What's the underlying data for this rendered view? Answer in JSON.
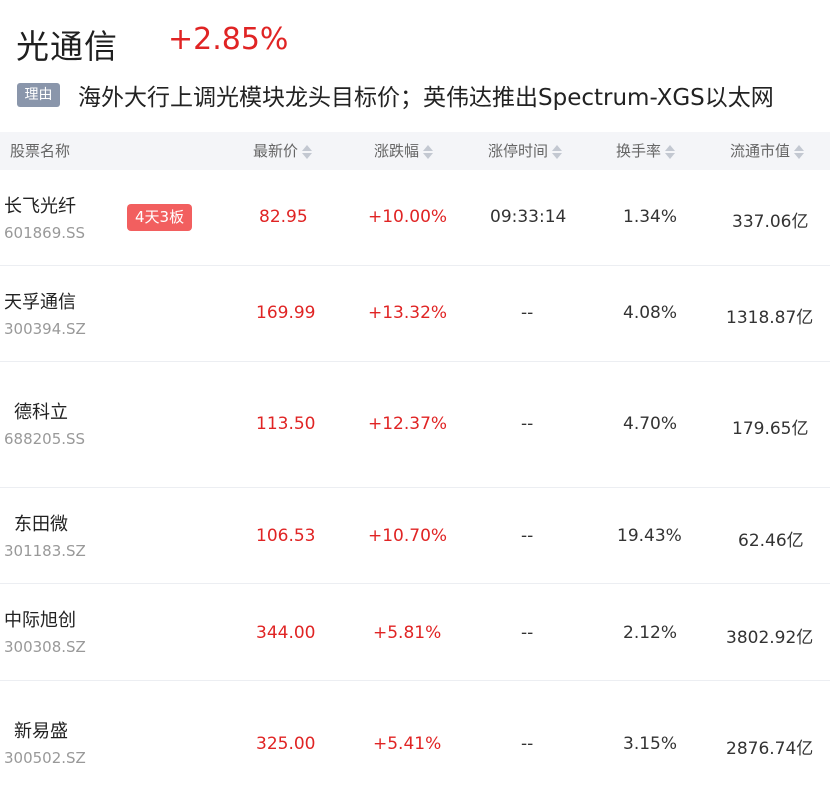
{
  "sector": {
    "name": "光通信",
    "change": "+2.85%",
    "reason_tag": "理由",
    "reason_text": "海外大行上调光模块龙头目标价；英伟达推出Spectrum-XGS以太网"
  },
  "table": {
    "columns": [
      "股票名称",
      "最新价",
      "涨跌幅",
      "涨停时间",
      "换手率",
      "流通市值"
    ],
    "rows": [
      {
        "name": "长飞光纤",
        "code": "601869.SS",
        "badge": "4天3板",
        "price": "82.95",
        "change": "+10.00%",
        "limit_time": "09:33:14",
        "turnover": "1.34%",
        "market_cap": "337.06亿"
      },
      {
        "name": "天孚通信",
        "code": "300394.SZ",
        "badge": "",
        "price": "169.99",
        "change": "+13.32%",
        "limit_time": "--",
        "turnover": "4.08%",
        "market_cap": "1318.87亿"
      },
      {
        "name": "德科立",
        "code": "688205.SS",
        "badge": "",
        "price": "113.50",
        "change": "+12.37%",
        "limit_time": "--",
        "turnover": "4.70%",
        "market_cap": "179.65亿"
      },
      {
        "name": "东田微",
        "code": "301183.SZ",
        "badge": "",
        "price": "106.53",
        "change": "+10.70%",
        "limit_time": "--",
        "turnover": "19.43%",
        "market_cap": "62.46亿"
      },
      {
        "name": "中际旭创",
        "code": "300308.SZ",
        "badge": "",
        "price": "344.00",
        "change": "+5.81%",
        "limit_time": "--",
        "turnover": "2.12%",
        "market_cap": "3802.92亿"
      },
      {
        "name": "新易盛",
        "code": "300502.SZ",
        "badge": "",
        "price": "325.00",
        "change": "+5.41%",
        "limit_time": "--",
        "turnover": "3.15%",
        "market_cap": "2876.74亿"
      }
    ]
  },
  "colors": {
    "up": "#e02424",
    "badge": "#f25f5f",
    "tag": "#8a96ab",
    "header_bg": "#f4f5f8"
  }
}
